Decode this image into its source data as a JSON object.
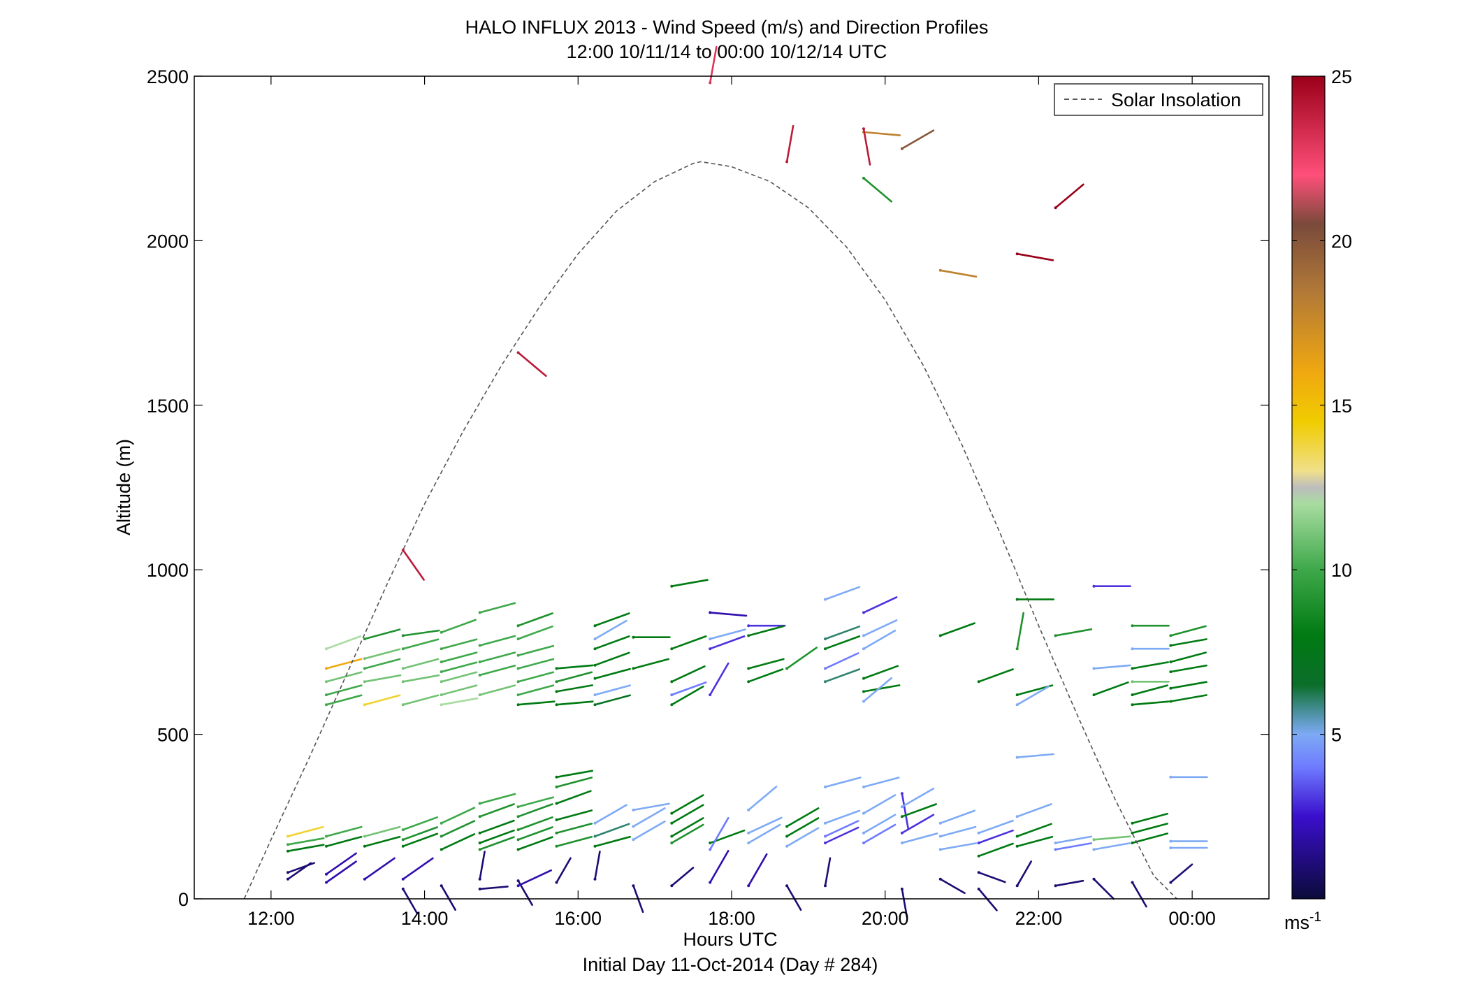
{
  "chart_data": {
    "type": "scatter",
    "title": "HALO INFLUX 2013 - Wind Speed (m/s) and Direction Profiles",
    "subtitle": "12:00 10/11/14 to 00:00 10/12/14  UTC",
    "xlabel": "Hours UTC",
    "xlabel2": "Initial Day 11-Oct-2014 (Day # 284)",
    "ylabel": "Altitude (m)",
    "xlim": [
      11.0,
      25.0
    ],
    "ylim": [
      0,
      2500
    ],
    "x_ticks": [
      12,
      14,
      16,
      18,
      20,
      22,
      24
    ],
    "x_tick_labels": [
      "12:00",
      "14:00",
      "16:00",
      "18:00",
      "20:00",
      "22:00",
      "00:00"
    ],
    "y_ticks": [
      0,
      500,
      1000,
      1500,
      2000,
      2500
    ],
    "y_tick_labels": [
      "0",
      "500",
      "1000",
      "1500",
      "2000",
      "2500"
    ],
    "grid": false,
    "legend": {
      "position": "top-right",
      "entries": [
        {
          "name": "Solar Insolation",
          "style": "dashed",
          "color": "#555555"
        }
      ]
    },
    "colorbar": {
      "range": [
        0,
        25
      ],
      "ticks": [
        5,
        10,
        15,
        20,
        25
      ],
      "tick_labels": [
        "5",
        "10",
        "15",
        "20",
        "25"
      ],
      "unit_label": "ms",
      "unit_exponent": "-1",
      "stops": [
        {
          "v": 0,
          "c": "#0b0b3a"
        },
        {
          "v": 2.5,
          "c": "#3a0ecc"
        },
        {
          "v": 4,
          "c": "#6e7bff"
        },
        {
          "v": 5,
          "c": "#7eaaf5"
        },
        {
          "v": 5.6,
          "c": "#4f93a8"
        },
        {
          "v": 6.5,
          "c": "#0b6e2a"
        },
        {
          "v": 8,
          "c": "#007a12"
        },
        {
          "v": 10,
          "c": "#3ea84a"
        },
        {
          "v": 12,
          "c": "#a8dca0"
        },
        {
          "v": 12.5,
          "c": "#bdbdbd"
        },
        {
          "v": 13,
          "c": "#f0e08a"
        },
        {
          "v": 14.5,
          "c": "#f0cc00"
        },
        {
          "v": 16,
          "c": "#f0a810"
        },
        {
          "v": 18.5,
          "c": "#b07838"
        },
        {
          "v": 20.5,
          "c": "#7a4a3a"
        },
        {
          "v": 22,
          "c": "#ff4f7a"
        },
        {
          "v": 25,
          "c": "#9a0018"
        }
      ]
    },
    "solar_insolation": {
      "x": [
        11.65,
        12.0,
        12.5,
        13.0,
        13.5,
        14.0,
        14.5,
        15.0,
        15.5,
        16.0,
        16.5,
        17.0,
        17.5,
        17.6,
        18.0,
        18.5,
        19.0,
        19.5,
        20.0,
        20.5,
        21.0,
        21.5,
        22.0,
        22.5,
        23.0,
        23.5,
        23.8
      ],
      "y": [
        0,
        180,
        430,
        690,
        950,
        1200,
        1420,
        1620,
        1800,
        1960,
        2090,
        2180,
        2235,
        2240,
        2225,
        2180,
        2100,
        1980,
        1820,
        1620,
        1380,
        1110,
        830,
        560,
        300,
        70,
        0
      ]
    },
    "barbs": [
      [
        12.22,
        190,
        15,
        14
      ],
      [
        12.22,
        165,
        10,
        10
      ],
      [
        12.22,
        145,
        10,
        8
      ],
      [
        12.22,
        80,
        20,
        1
      ],
      [
        12.22,
        60,
        35,
        1
      ],
      [
        12.72,
        760,
        20,
        12
      ],
      [
        12.72,
        700,
        15,
        16
      ],
      [
        12.72,
        660,
        15,
        11
      ],
      [
        12.72,
        620,
        15,
        10
      ],
      [
        12.72,
        590,
        15,
        10
      ],
      [
        12.72,
        190,
        15,
        10
      ],
      [
        12.72,
        160,
        15,
        8
      ],
      [
        12.72,
        75,
        35,
        2
      ],
      [
        12.72,
        50,
        35,
        2
      ],
      [
        13.22,
        790,
        15,
        9
      ],
      [
        13.22,
        730,
        15,
        11
      ],
      [
        13.22,
        700,
        15,
        10
      ],
      [
        13.22,
        660,
        10,
        11
      ],
      [
        13.22,
        590,
        15,
        14
      ],
      [
        13.22,
        190,
        15,
        11
      ],
      [
        13.22,
        160,
        15,
        8
      ],
      [
        13.22,
        60,
        35,
        2
      ],
      [
        13.72,
        800,
        8,
        9
      ],
      [
        13.72,
        760,
        15,
        10
      ],
      [
        13.72,
        700,
        15,
        11
      ],
      [
        13.72,
        660,
        10,
        11
      ],
      [
        13.72,
        590,
        15,
        11
      ],
      [
        13.72,
        210,
        20,
        10
      ],
      [
        13.72,
        180,
        20,
        9
      ],
      [
        13.72,
        160,
        20,
        8
      ],
      [
        13.72,
        60,
        35,
        2
      ],
      [
        13.72,
        30,
        -60,
        1
      ],
      [
        13.72,
        1060,
        -55,
        24
      ],
      [
        14.22,
        810,
        20,
        10
      ],
      [
        14.22,
        760,
        15,
        10
      ],
      [
        14.22,
        720,
        15,
        10
      ],
      [
        14.22,
        690,
        15,
        10
      ],
      [
        14.22,
        660,
        15,
        11
      ],
      [
        14.22,
        620,
        15,
        11
      ],
      [
        14.22,
        590,
        10,
        12
      ],
      [
        14.22,
        230,
        25,
        10
      ],
      [
        14.22,
        190,
        25,
        9
      ],
      [
        14.22,
        150,
        25,
        8
      ],
      [
        14.22,
        40,
        -60,
        1
      ],
      [
        14.72,
        870,
        15,
        10
      ],
      [
        14.72,
        770,
        15,
        10
      ],
      [
        14.72,
        720,
        15,
        10
      ],
      [
        14.72,
        680,
        15,
        10
      ],
      [
        14.72,
        620,
        15,
        11
      ],
      [
        14.72,
        290,
        15,
        10
      ],
      [
        14.72,
        250,
        20,
        9
      ],
      [
        14.72,
        200,
        20,
        8
      ],
      [
        14.72,
        170,
        20,
        8
      ],
      [
        14.72,
        150,
        20,
        9
      ],
      [
        14.72,
        60,
        80,
        1
      ],
      [
        14.72,
        30,
        5,
        1
      ],
      [
        15.22,
        830,
        20,
        9
      ],
      [
        15.22,
        790,
        20,
        10
      ],
      [
        15.22,
        740,
        15,
        10
      ],
      [
        15.22,
        700,
        15,
        10
      ],
      [
        15.22,
        660,
        15,
        10
      ],
      [
        15.22,
        620,
        15,
        10
      ],
      [
        15.22,
        590,
        5,
        8
      ],
      [
        15.22,
        280,
        15,
        10
      ],
      [
        15.22,
        250,
        20,
        9
      ],
      [
        15.22,
        210,
        20,
        9
      ],
      [
        15.22,
        180,
        20,
        9
      ],
      [
        15.22,
        150,
        20,
        8
      ],
      [
        15.22,
        1660,
        -40,
        24
      ],
      [
        15.22,
        55,
        -60,
        1
      ],
      [
        15.22,
        40,
        25,
        2
      ],
      [
        15.72,
        700,
        5,
        8
      ],
      [
        15.72,
        660,
        15,
        9
      ],
      [
        15.72,
        630,
        10,
        8
      ],
      [
        15.72,
        590,
        5,
        8
      ],
      [
        15.72,
        370,
        10,
        8
      ],
      [
        15.72,
        340,
        15,
        9
      ],
      [
        15.72,
        290,
        20,
        8
      ],
      [
        15.72,
        240,
        15,
        8
      ],
      [
        15.72,
        200,
        15,
        9
      ],
      [
        15.72,
        160,
        15,
        9
      ],
      [
        15.72,
        50,
        60,
        1
      ],
      [
        16.22,
        830,
        20,
        8
      ],
      [
        16.22,
        790,
        30,
        5
      ],
      [
        16.22,
        760,
        20,
        8
      ],
      [
        16.22,
        710,
        20,
        8
      ],
      [
        16.22,
        670,
        15,
        8
      ],
      [
        16.22,
        620,
        15,
        5
      ],
      [
        16.22,
        590,
        15,
        7
      ],
      [
        16.22,
        230,
        30,
        5
      ],
      [
        16.22,
        190,
        20,
        6
      ],
      [
        16.22,
        160,
        15,
        8
      ],
      [
        16.22,
        60,
        80,
        1
      ],
      [
        16.72,
        795,
        0,
        8
      ],
      [
        16.72,
        700,
        15,
        8
      ],
      [
        16.72,
        270,
        10,
        5
      ],
      [
        16.72,
        220,
        30,
        5
      ],
      [
        16.72,
        180,
        30,
        5
      ],
      [
        16.72,
        40,
        -70,
        1
      ],
      [
        17.22,
        950,
        10,
        8
      ],
      [
        17.22,
        760,
        20,
        8
      ],
      [
        17.22,
        660,
        25,
        8
      ],
      [
        17.22,
        620,
        20,
        4
      ],
      [
        17.22,
        590,
        30,
        8
      ],
      [
        17.22,
        260,
        30,
        8
      ],
      [
        17.22,
        230,
        30,
        8
      ],
      [
        17.22,
        190,
        30,
        8
      ],
      [
        17.22,
        170,
        30,
        9
      ],
      [
        17.22,
        40,
        40,
        1
      ],
      [
        17.72,
        870,
        -5,
        2
      ],
      [
        17.72,
        790,
        15,
        5
      ],
      [
        17.72,
        760,
        20,
        3
      ],
      [
        17.72,
        620,
        60,
        3
      ],
      [
        17.72,
        2480,
        80,
        23
      ],
      [
        17.72,
        170,
        20,
        8
      ],
      [
        17.72,
        150,
        60,
        4
      ],
      [
        17.72,
        50,
        60,
        2
      ],
      [
        18.22,
        830,
        0,
        3
      ],
      [
        18.22,
        800,
        15,
        8
      ],
      [
        18.22,
        700,
        15,
        8
      ],
      [
        18.22,
        660,
        20,
        8
      ],
      [
        18.22,
        270,
        40,
        5
      ],
      [
        18.22,
        200,
        25,
        5
      ],
      [
        18.22,
        170,
        30,
        5
      ],
      [
        18.22,
        40,
        60,
        2
      ],
      [
        18.72,
        700,
        35,
        9
      ],
      [
        18.72,
        2240,
        80,
        24
      ],
      [
        18.72,
        220,
        30,
        8
      ],
      [
        18.72,
        190,
        30,
        8
      ],
      [
        18.72,
        160,
        30,
        5
      ],
      [
        18.72,
        40,
        -60,
        1
      ],
      [
        19.22,
        910,
        20,
        5
      ],
      [
        19.22,
        790,
        20,
        6
      ],
      [
        19.22,
        760,
        20,
        8
      ],
      [
        19.22,
        700,
        25,
        4
      ],
      [
        19.22,
        660,
        20,
        6
      ],
      [
        19.22,
        340,
        15,
        5
      ],
      [
        19.22,
        230,
        20,
        5
      ],
      [
        19.22,
        190,
        25,
        4
      ],
      [
        19.22,
        170,
        25,
        3
      ],
      [
        19.22,
        40,
        80,
        1
      ],
      [
        19.72,
        2330,
        -5,
        18
      ],
      [
        19.72,
        2340,
        -80,
        24
      ],
      [
        19.72,
        2190,
        -40,
        9
      ],
      [
        19.72,
        870,
        25,
        3
      ],
      [
        19.72,
        800,
        25,
        5
      ],
      [
        19.72,
        760,
        30,
        5
      ],
      [
        19.72,
        670,
        20,
        8
      ],
      [
        19.72,
        630,
        10,
        8
      ],
      [
        19.72,
        600,
        40,
        5
      ],
      [
        19.72,
        340,
        15,
        5
      ],
      [
        19.72,
        260,
        30,
        5
      ],
      [
        19.72,
        200,
        30,
        5
      ],
      [
        19.72,
        170,
        30,
        4
      ],
      [
        20.22,
        2280,
        30,
        20
      ],
      [
        20.22,
        320,
        -80,
        3
      ],
      [
        20.22,
        280,
        30,
        5
      ],
      [
        20.22,
        250,
        20,
        8
      ],
      [
        20.22,
        200,
        30,
        3
      ],
      [
        20.22,
        170,
        15,
        5
      ],
      [
        20.22,
        30,
        -80,
        1
      ],
      [
        20.72,
        1910,
        -10,
        18
      ],
      [
        20.72,
        800,
        20,
        8
      ],
      [
        20.72,
        230,
        20,
        5
      ],
      [
        20.72,
        190,
        15,
        5
      ],
      [
        20.72,
        150,
        10,
        5
      ],
      [
        20.72,
        60,
        -30,
        1
      ],
      [
        21.22,
        660,
        20,
        8
      ],
      [
        21.22,
        200,
        20,
        5
      ],
      [
        21.22,
        170,
        20,
        3
      ],
      [
        21.22,
        130,
        20,
        8
      ],
      [
        21.22,
        80,
        -20,
        1
      ],
      [
        21.22,
        30,
        -50,
        1
      ],
      [
        21.72,
        1960,
        -10,
        25
      ],
      [
        21.72,
        910,
        0,
        8
      ],
      [
        21.72,
        760,
        80,
        9
      ],
      [
        21.72,
        620,
        15,
        8
      ],
      [
        21.72,
        590,
        30,
        5
      ],
      [
        21.72,
        430,
        5,
        5
      ],
      [
        21.72,
        250,
        20,
        5
      ],
      [
        21.72,
        190,
        20,
        8
      ],
      [
        21.72,
        160,
        15,
        8
      ],
      [
        21.72,
        40,
        60,
        1
      ],
      [
        22.22,
        2100,
        40,
        25
      ],
      [
        22.22,
        800,
        10,
        9
      ],
      [
        22.22,
        170,
        10,
        5
      ],
      [
        22.22,
        150,
        10,
        4
      ],
      [
        22.22,
        40,
        10,
        1
      ],
      [
        22.72,
        950,
        0,
        3
      ],
      [
        22.72,
        700,
        5,
        5
      ],
      [
        22.72,
        620,
        20,
        8
      ],
      [
        22.72,
        180,
        5,
        11
      ],
      [
        22.72,
        150,
        10,
        5
      ],
      [
        22.72,
        60,
        -45,
        1
      ],
      [
        23.22,
        830,
        0,
        9
      ],
      [
        23.22,
        760,
        0,
        5
      ],
      [
        23.22,
        700,
        10,
        8
      ],
      [
        23.22,
        660,
        0,
        11
      ],
      [
        23.22,
        620,
        15,
        8
      ],
      [
        23.22,
        590,
        5,
        8
      ],
      [
        23.22,
        230,
        15,
        8
      ],
      [
        23.22,
        200,
        15,
        8
      ],
      [
        23.22,
        170,
        15,
        8
      ],
      [
        23.22,
        50,
        -60,
        1
      ],
      [
        23.72,
        800,
        15,
        9
      ],
      [
        23.72,
        770,
        10,
        8
      ],
      [
        23.72,
        720,
        15,
        8
      ],
      [
        23.72,
        690,
        10,
        8
      ],
      [
        23.72,
        640,
        10,
        8
      ],
      [
        23.72,
        600,
        10,
        8
      ],
      [
        23.72,
        370,
        0,
        5
      ],
      [
        23.72,
        175,
        0,
        5
      ],
      [
        23.72,
        155,
        0,
        5
      ],
      [
        23.72,
        50,
        40,
        1
      ]
    ]
  }
}
